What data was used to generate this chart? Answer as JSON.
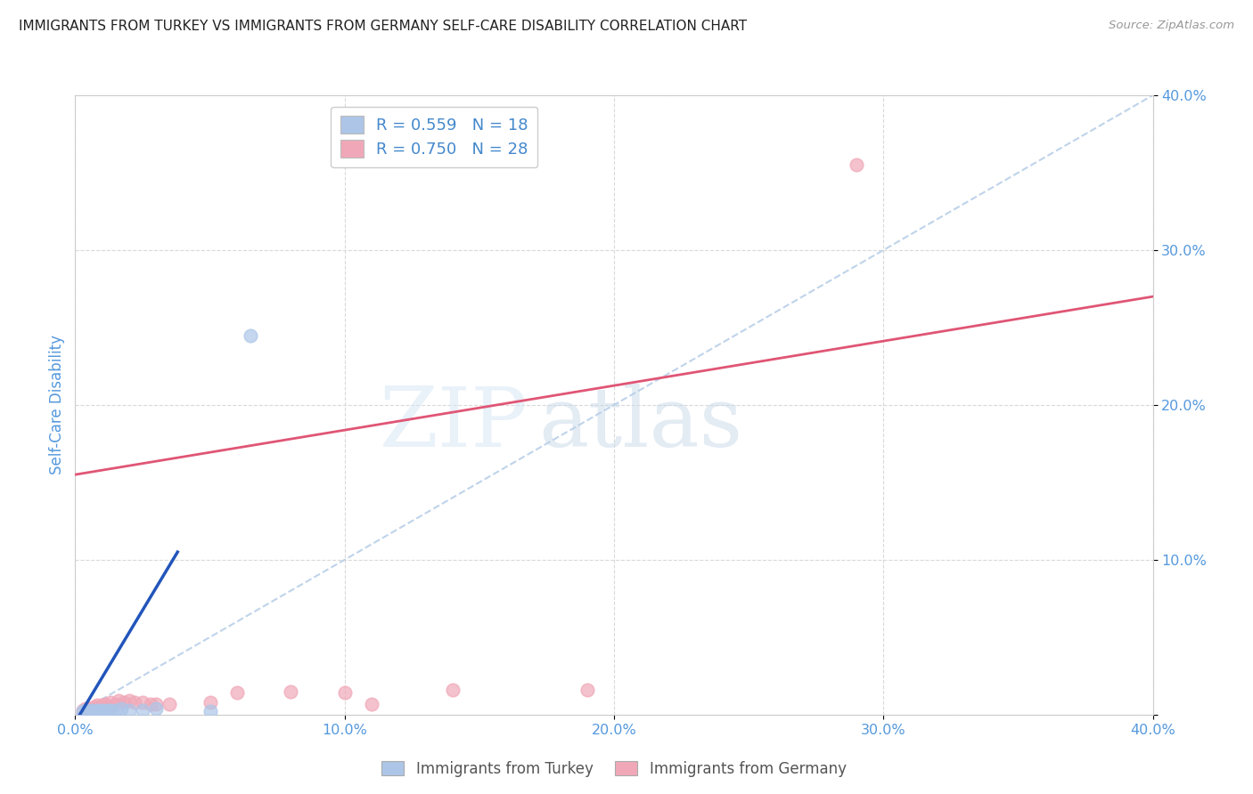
{
  "title": "IMMIGRANTS FROM TURKEY VS IMMIGRANTS FROM GERMANY SELF-CARE DISABILITY CORRELATION CHART",
  "source": "Source: ZipAtlas.com",
  "ylabel": "Self-Care Disability",
  "xlim": [
    0.0,
    0.4
  ],
  "ylim": [
    0.0,
    0.4
  ],
  "xticks": [
    0.0,
    0.1,
    0.2,
    0.3,
    0.4
  ],
  "yticks": [
    0.0,
    0.1,
    0.2,
    0.3,
    0.4
  ],
  "xticklabels": [
    "0.0%",
    "10.0%",
    "20.0%",
    "30.0%",
    "40.0%"
  ],
  "yticklabels": [
    "",
    "10.0%",
    "20.0%",
    "30.0%",
    "40.0%"
  ],
  "turkey_color": "#adc6e8",
  "germany_color": "#f0a8b8",
  "turkey_line_color": "#2255bb",
  "germany_line_color": "#e05575",
  "diagonal_color": "#b8cfe8",
  "r_n_color": "#4488cc",
  "axis_label_color": "#5599dd",
  "tick_label_color": "#5599dd",
  "turkey_scatter": [
    [
      0.003,
      0.002
    ],
    [
      0.004,
      0.003
    ],
    [
      0.005,
      0.002
    ],
    [
      0.006,
      0.003
    ],
    [
      0.007,
      0.002
    ],
    [
      0.008,
      0.003
    ],
    [
      0.009,
      0.002
    ],
    [
      0.01,
      0.003
    ],
    [
      0.011,
      0.002
    ],
    [
      0.012,
      0.003
    ],
    [
      0.013,
      0.003
    ],
    [
      0.015,
      0.003
    ],
    [
      0.017,
      0.004
    ],
    [
      0.02,
      0.003
    ],
    [
      0.025,
      0.003
    ],
    [
      0.03,
      0.004
    ],
    [
      0.05,
      0.002
    ],
    [
      0.065,
      0.245
    ]
  ],
  "germany_scatter": [
    [
      0.003,
      0.003
    ],
    [
      0.004,
      0.004
    ],
    [
      0.005,
      0.004
    ],
    [
      0.006,
      0.004
    ],
    [
      0.007,
      0.005
    ],
    [
      0.008,
      0.006
    ],
    [
      0.009,
      0.005
    ],
    [
      0.01,
      0.006
    ],
    [
      0.011,
      0.007
    ],
    [
      0.012,
      0.005
    ],
    [
      0.013,
      0.008
    ],
    [
      0.015,
      0.007
    ],
    [
      0.016,
      0.009
    ],
    [
      0.018,
      0.008
    ],
    [
      0.02,
      0.009
    ],
    [
      0.022,
      0.008
    ],
    [
      0.025,
      0.008
    ],
    [
      0.028,
      0.007
    ],
    [
      0.03,
      0.007
    ],
    [
      0.035,
      0.007
    ],
    [
      0.05,
      0.008
    ],
    [
      0.06,
      0.014
    ],
    [
      0.08,
      0.015
    ],
    [
      0.1,
      0.014
    ],
    [
      0.11,
      0.007
    ],
    [
      0.14,
      0.016
    ],
    [
      0.19,
      0.016
    ],
    [
      0.29,
      0.355
    ]
  ],
  "turkey_line": [
    [
      0.0,
      -0.005
    ],
    [
      0.038,
      0.105
    ]
  ],
  "germany_line": [
    [
      0.0,
      0.155
    ],
    [
      0.4,
      0.27
    ]
  ],
  "background_color": "#ffffff",
  "watermark_zip": "ZIP",
  "watermark_atlas": "atlas",
  "watermark_color_zip": "#d5e5f5",
  "watermark_color_atlas": "#c8d8e8"
}
